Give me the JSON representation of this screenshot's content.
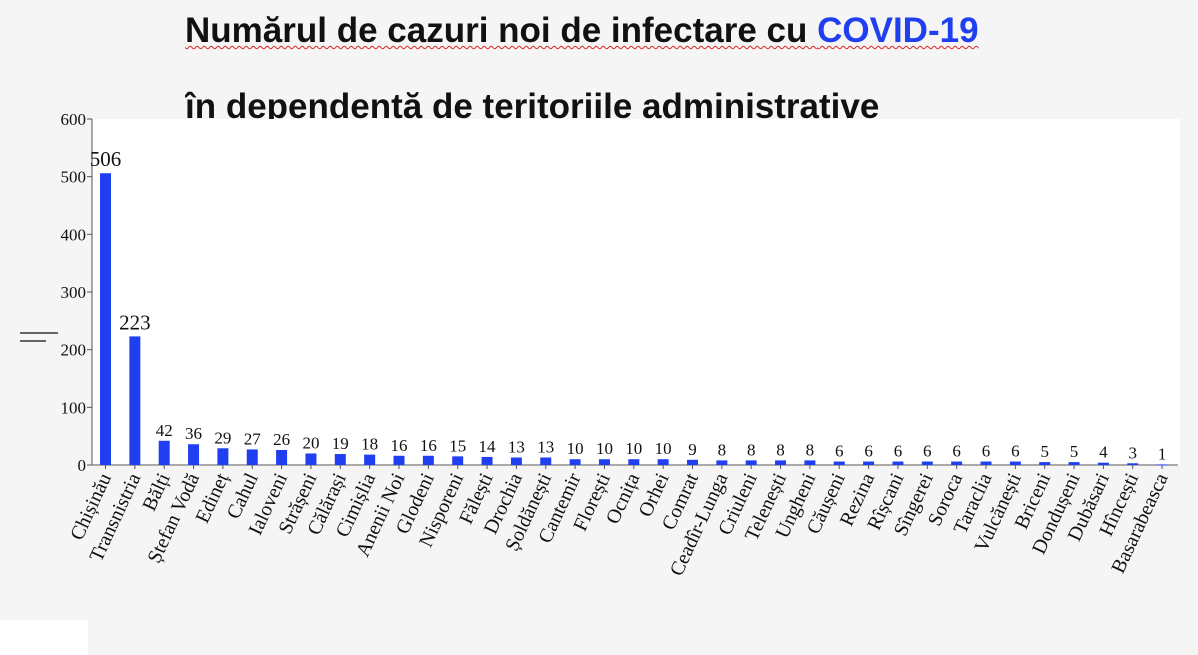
{
  "title": {
    "line1": "Numărul de cazuri noi de infectare cu ",
    "covid": "COVID-19",
    "line2": "în dependență de teritoriile administrative"
  },
  "colors": {
    "bar": "#1f3ff0",
    "axis": "#555555",
    "text": "#111111"
  },
  "chart_data": {
    "type": "bar",
    "title": "Numărul de cazuri noi de infectare cu COVID-19 în dependență de teritoriile administrative",
    "xlabel": "",
    "ylabel": "",
    "ylim": [
      0,
      600
    ],
    "yticks": [
      0,
      100,
      200,
      300,
      400,
      500,
      600
    ],
    "grid": false,
    "categories": [
      "Chișinău",
      "Transnistria",
      "Bălți",
      "Ștefan Vodă",
      "Edineț",
      "Cahul",
      "Ialoveni",
      "Strășeni",
      "Călărași",
      "Cimișlia",
      "Anenii Noi",
      "Glodeni",
      "Nisporeni",
      "Fălești",
      "Drochia",
      "Șoldănești",
      "Cantemir",
      "Florești",
      "Ocnița",
      "Orhei",
      "Comrat",
      "Ceadîr-Lunga",
      "Criuleni",
      "Telenești",
      "Ungheni",
      "Căușeni",
      "Rezina",
      "Rîșcani",
      "Sîngerei",
      "Soroca",
      "Taraclia",
      "Vulcănești",
      "Briceni",
      "Dondușeni",
      "Dubăsari",
      "Hîncești",
      "Basarabeasca"
    ],
    "values": [
      506,
      223,
      42,
      36,
      29,
      27,
      26,
      20,
      19,
      18,
      16,
      16,
      15,
      14,
      13,
      13,
      10,
      10,
      10,
      10,
      9,
      8,
      8,
      8,
      8,
      6,
      6,
      6,
      6,
      6,
      6,
      6,
      5,
      5,
      4,
      3,
      1
    ]
  }
}
